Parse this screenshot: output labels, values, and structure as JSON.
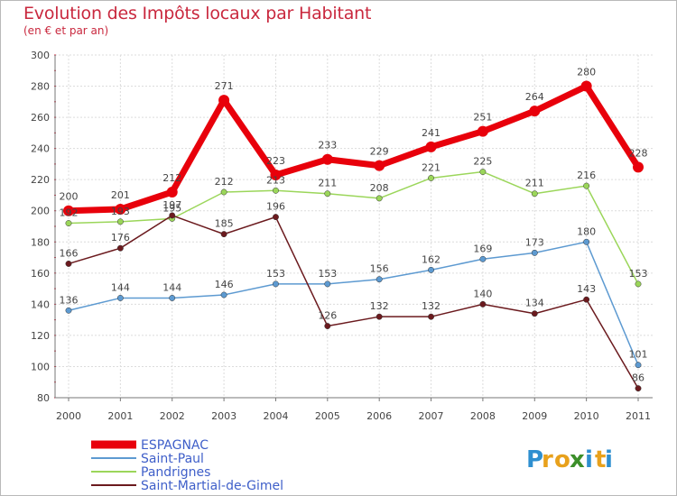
{
  "title": "Evolution des Impôts locaux par Habitant",
  "subtitle": "(en € et par an)",
  "logo": {
    "letters": [
      "P",
      "r",
      "o",
      "x",
      "i",
      "t",
      "i"
    ],
    "colors": [
      "#2e8fd0",
      "#e8a11c",
      "#e8a11c",
      "#3c8f2a",
      "#2e8fd0",
      "#e8a11c",
      "#2e8fd0"
    ]
  },
  "chart_data": {
    "type": "line",
    "title": "Evolution des Impôts locaux par Habitant",
    "subtitle": "(en € et par an)",
    "x": [
      "2000",
      "2001",
      "2002",
      "2003",
      "2004",
      "2005",
      "2006",
      "2007",
      "2008",
      "2009",
      "2010",
      "2011"
    ],
    "ylim": [
      80,
      300
    ],
    "yticks": [
      "80",
      "100",
      "120",
      "140",
      "160",
      "180",
      "200",
      "220",
      "240",
      "260",
      "280",
      "300"
    ],
    "grid": true,
    "legend_position": "bottom-left",
    "series": [
      {
        "name": "ESPAGNAC",
        "color": "#e8000b",
        "legend_color": "#3f5fc9",
        "emphasis": true,
        "values": [
          200,
          201,
          212,
          271,
          223,
          233,
          229,
          241,
          251,
          264,
          280,
          228
        ],
        "labels": [
          "200",
          "201",
          "212",
          "271",
          "223",
          "233",
          "229",
          "241",
          "251",
          "264",
          "280",
          "228"
        ]
      },
      {
        "name": "Saint-Paul",
        "color": "#5d9ad1",
        "legend_color": "#3f5fc9",
        "emphasis": false,
        "values": [
          136,
          144,
          144,
          146,
          153,
          153,
          156,
          162,
          169,
          173,
          180,
          101
        ],
        "labels": [
          "136",
          "144",
          "144",
          "146",
          "153",
          "153",
          "156",
          "162",
          "169",
          "173",
          "180",
          "101"
        ]
      },
      {
        "name": "Pandrignes",
        "color": "#9bd65a",
        "legend_color": "#3f5fc9",
        "emphasis": false,
        "values": [
          192,
          193,
          195,
          212,
          213,
          211,
          208,
          221,
          225,
          211,
          216,
          153
        ],
        "labels": [
          "192",
          "193",
          "195",
          "212",
          "213",
          "211",
          "208",
          "221",
          "225",
          "211",
          "216",
          "153"
        ]
      },
      {
        "name": "Saint-Martial-de-Gimel",
        "color": "#6b1a1e",
        "legend_color": "#3f5fc9",
        "emphasis": false,
        "values": [
          166,
          176,
          197,
          185,
          196,
          126,
          132,
          132,
          140,
          134,
          143,
          86
        ],
        "labels": [
          "166",
          "176",
          "197",
          "185",
          "196",
          "126",
          "132",
          "132",
          "140",
          "134",
          "143",
          "86"
        ]
      }
    ]
  }
}
